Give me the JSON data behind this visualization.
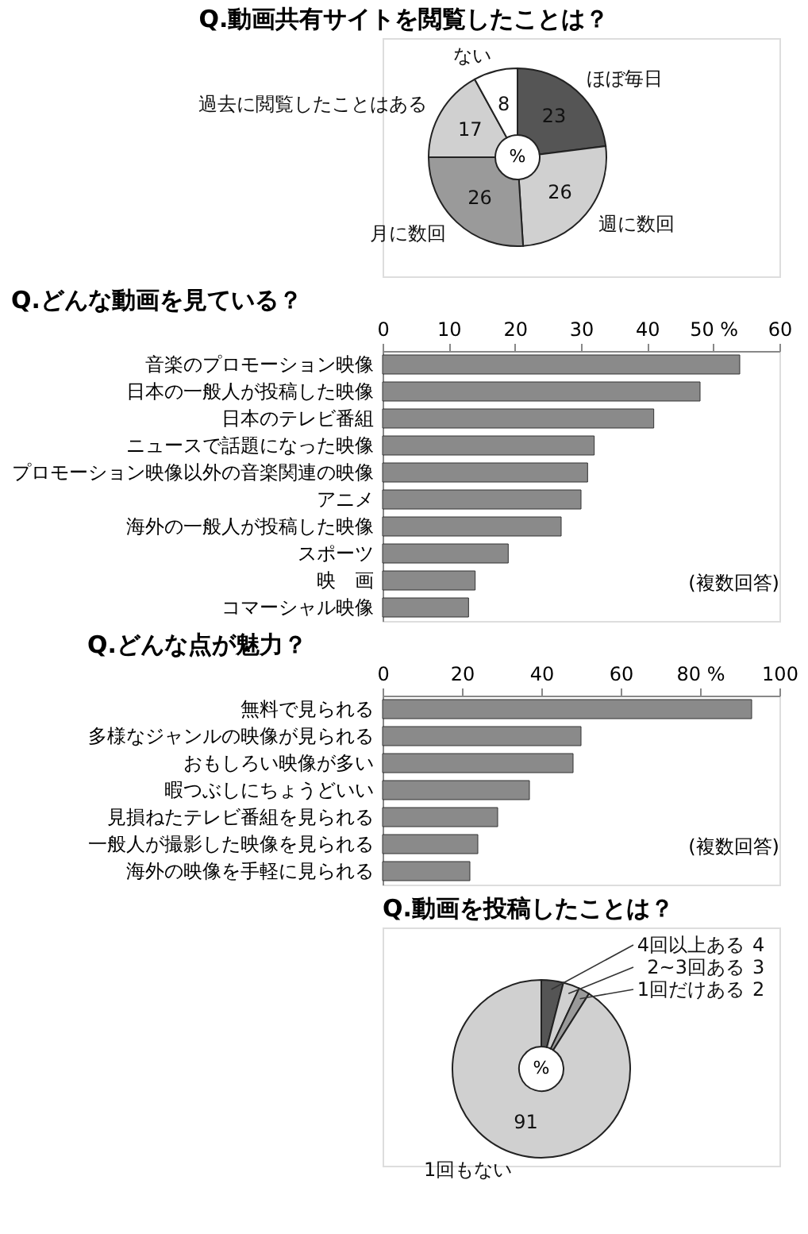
{
  "chart_data": [
    {
      "type": "donut",
      "title": "Q.動画共有サイトを閲覧したことは？",
      "categories": [
        "ほぼ毎日",
        "週に数回",
        "月に数回",
        "過去に閲覧したことはある",
        "ない"
      ],
      "values": [
        23,
        26,
        26,
        17,
        8
      ],
      "colors": [
        "#555555",
        "#d0d0d0",
        "#9a9a9a",
        "#d0d0d0",
        "#ffffff"
      ],
      "data_labels": true,
      "annotations": [
        "%"
      ]
    },
    {
      "type": "bar",
      "orientation": "horizontal",
      "title": "Q.どんな動画を見ている？",
      "categories": [
        "音楽のプロモーション映像",
        "日本の一般人が投稿した映像",
        "日本のテレビ番組",
        "ニュースで話題になった映像",
        "プロモーション映像以外の音楽関連の映像",
        "アニメ",
        "海外の一般人が投稿した映像",
        "スポーツ",
        "映　画",
        "コマーシャル映像"
      ],
      "values": [
        54,
        48,
        41,
        32,
        31,
        30,
        27,
        19,
        14,
        13
      ],
      "color": "#8a8a8a",
      "xlim": [
        0,
        60
      ],
      "xticks": [
        0,
        10,
        20,
        30,
        40,
        {
          "value": 50,
          "label": "50 %"
        },
        60
      ],
      "annotations": [
        "(複数回答)"
      ]
    },
    {
      "type": "bar",
      "orientation": "horizontal",
      "title": "Q.どんな点が魅力？",
      "categories": [
        "無料で見られる",
        "多様なジャンルの映像が見られる",
        "おもしろい映像が多い",
        "暇つぶしにちょうどいい",
        "見損ねたテレビ番組を見られる",
        "一般人が撮影した映像を見られる",
        "海外の映像を手軽に見られる"
      ],
      "values": [
        93,
        50,
        48,
        37,
        29,
        24,
        22
      ],
      "color": "#8a8a8a",
      "xlim": [
        0,
        100
      ],
      "xticks": [
        0,
        20,
        40,
        60,
        {
          "value": 80,
          "label": "80 %"
        },
        100
      ],
      "annotations": [
        "(複数回答)"
      ]
    },
    {
      "type": "donut",
      "title": "Q.動画を投稿したことは？",
      "categories": [
        "4回以上ある",
        "2~3回ある",
        "1回だけある",
        "1回もない"
      ],
      "values": [
        4,
        3,
        2,
        91
      ],
      "colors": [
        "#555555",
        "#e0e0e0",
        "#9a9a9a",
        "#d0d0d0"
      ],
      "data_labels": true,
      "annotations": [
        "%"
      ]
    }
  ]
}
